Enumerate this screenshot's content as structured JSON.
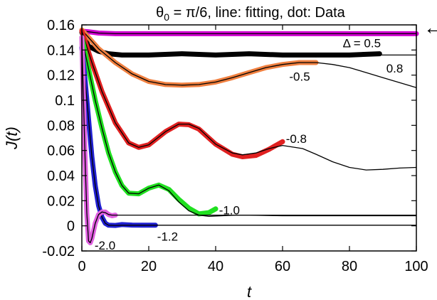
{
  "chart_data": {
    "type": "line",
    "title": {
      "base": "θ",
      "sub": "0",
      "rest": " = π/6, line: fitting, dot: Data"
    },
    "xlabel": "t",
    "ylabel": "J(t)",
    "xlim": [
      0,
      100
    ],
    "ylim": [
      -0.02,
      0.16
    ],
    "xticks": [
      0,
      20,
      40,
      60,
      80,
      100
    ],
    "yticks": [
      -0.02,
      0,
      0.02,
      0.04,
      0.06,
      0.08,
      0.1,
      0.12,
      0.14,
      0.16
    ],
    "ytick_labels": [
      "-0.02",
      "0",
      "0.02",
      "0.04",
      "0.06",
      "0.08",
      "0.1",
      "0.12",
      "0.14",
      "0.16"
    ],
    "grid": false,
    "legend": "none",
    "marker": {
      "y": 0.157,
      "symbol": "←",
      "position": "right edge"
    },
    "series": [
      {
        "label": "Δ = 0.5",
        "color": "#d000d0",
        "label_pos": [
          78,
          0.1455
        ],
        "fit": {
          "x": [
            0,
            2,
            5,
            10,
            20,
            40,
            60,
            80,
            100
          ],
          "y": [
            0.155,
            0.1545,
            0.1535,
            0.153,
            0.153,
            0.153,
            0.153,
            0.153,
            0.153
          ]
        },
        "data": {
          "x": [
            0,
            2,
            5,
            10,
            20,
            40,
            60,
            80,
            100
          ],
          "y": [
            0.155,
            0.1545,
            0.1535,
            0.153,
            0.153,
            0.153,
            0.153,
            0.153,
            0.153
          ]
        }
      },
      {
        "label": "0.8",
        "color": "#000000",
        "label_pos": [
          91,
          0.1255
        ],
        "fit": {
          "x": [
            0,
            2,
            5,
            8,
            12,
            20,
            30,
            40,
            50,
            60,
            70,
            80,
            90,
            100
          ],
          "y": [
            0.154,
            0.144,
            0.139,
            0.137,
            0.136,
            0.136,
            0.136,
            0.136,
            0.136,
            0.136,
            0.136,
            0.136,
            0.136,
            0.136
          ]
        },
        "data": {
          "x": [
            0,
            2,
            5,
            8,
            12,
            20,
            30,
            40,
            50,
            60,
            70,
            80,
            89
          ],
          "y": [
            0.154,
            0.143,
            0.139,
            0.137,
            0.136,
            0.136,
            0.137,
            0.136,
            0.137,
            0.136,
            0.136,
            0.136,
            0.137
          ]
        }
      },
      {
        "label": "-0.5",
        "color": "#f08040",
        "label_pos": [
          62,
          0.119
        ],
        "fit": {
          "x": [
            0,
            5,
            10,
            15,
            20,
            25,
            30,
            35,
            40,
            45,
            50,
            55,
            60,
            65,
            70,
            75,
            80,
            85,
            90,
            95,
            100
          ],
          "y": [
            0.156,
            0.141,
            0.13,
            0.121,
            0.115,
            0.1125,
            0.112,
            0.1125,
            0.1145,
            0.118,
            0.122,
            0.126,
            0.1285,
            0.13,
            0.13,
            0.1285,
            0.126,
            0.122,
            0.118,
            0.114,
            0.11
          ]
        },
        "data": {
          "x": [
            0,
            5,
            10,
            15,
            20,
            25,
            30,
            35,
            40,
            45,
            50,
            55,
            60,
            65,
            70
          ],
          "y": [
            0.156,
            0.141,
            0.13,
            0.121,
            0.115,
            0.1125,
            0.112,
            0.1125,
            0.1145,
            0.118,
            0.122,
            0.126,
            0.1285,
            0.13,
            0.13
          ]
        }
      },
      {
        "label": "-0.8",
        "color": "#e02020",
        "label_pos": [
          61,
          0.0695
        ],
        "fit": {
          "x": [
            0,
            3,
            6,
            10,
            14,
            17,
            20,
            25,
            29,
            32,
            35,
            40,
            45,
            48,
            52,
            56,
            60,
            66,
            70,
            75,
            80,
            85,
            90,
            95,
            100
          ],
          "y": [
            0.155,
            0.13,
            0.107,
            0.082,
            0.066,
            0.0625,
            0.0645,
            0.075,
            0.081,
            0.081,
            0.0775,
            0.065,
            0.058,
            0.0565,
            0.058,
            0.0615,
            0.064,
            0.0615,
            0.057,
            0.051,
            0.0465,
            0.0445,
            0.045,
            0.046,
            0.0465
          ]
        },
        "data": {
          "x": [
            0,
            3,
            6,
            10,
            14,
            17,
            20,
            25,
            29,
            32,
            35,
            40,
            45,
            48,
            52,
            56,
            60
          ],
          "y": [
            0.155,
            0.13,
            0.107,
            0.082,
            0.066,
            0.0625,
            0.0645,
            0.075,
            0.081,
            0.0805,
            0.077,
            0.065,
            0.057,
            0.055,
            0.056,
            0.061,
            0.067
          ]
        }
      },
      {
        "label": "-1.0",
        "color": "#20e020",
        "label_pos": [
          41,
          0.0125
        ],
        "fit": {
          "x": [
            0,
            2,
            4,
            6,
            8,
            10,
            12,
            14,
            17,
            20,
            23,
            26,
            29,
            32,
            35,
            38,
            42,
            46,
            50,
            60,
            70,
            80,
            90,
            100
          ],
          "y": [
            0.15,
            0.125,
            0.1,
            0.078,
            0.058,
            0.043,
            0.032,
            0.026,
            0.0255,
            0.03,
            0.0325,
            0.028,
            0.019,
            0.012,
            0.0085,
            0.0075,
            0.008,
            0.0085,
            0.0085,
            0.008,
            0.008,
            0.008,
            0.008,
            0.008
          ]
        },
        "data": {
          "x": [
            0,
            2,
            4,
            6,
            8,
            10,
            12,
            14,
            17,
            20,
            23,
            26,
            29,
            32,
            35,
            38,
            40
          ],
          "y": [
            0.15,
            0.125,
            0.1,
            0.078,
            0.058,
            0.043,
            0.032,
            0.026,
            0.0255,
            0.03,
            0.0325,
            0.029,
            0.021,
            0.014,
            0.0095,
            0.0105,
            0.0135
          ]
        }
      },
      {
        "label": "-1.2",
        "color": "#2020d0",
        "label_pos": [
          22.5,
          -0.0085
        ],
        "fit": {
          "x": [
            0,
            1,
            2,
            3,
            4,
            5,
            6,
            7,
            8,
            10,
            12,
            15,
            18,
            22,
            30,
            40,
            60,
            80,
            100
          ],
          "y": [
            0.142,
            0.115,
            0.085,
            0.055,
            0.032,
            0.016,
            0.007,
            0.002,
            0.0005,
            0.0003,
            0.0005,
            0.0005,
            0.0005,
            0.0005,
            0.0005,
            0.0005,
            0.0005,
            0.0005,
            0.0005
          ]
        },
        "data": {
          "x": [
            0,
            1,
            2,
            3,
            4,
            5,
            6,
            7,
            8,
            10,
            12,
            15,
            18,
            22
          ],
          "y": [
            0.142,
            0.115,
            0.085,
            0.055,
            0.032,
            0.016,
            0.007,
            0.002,
            0.0005,
            0.0003,
            0.001,
            0.0006,
            0.0005,
            0.0005
          ]
        }
      },
      {
        "label": "-2.0",
        "color": "#e060e0",
        "label_pos": [
          3.8,
          -0.0155
        ],
        "fit": {
          "x": [
            0,
            0.5,
            1,
            1.5,
            2,
            2.5,
            3,
            4,
            5,
            6,
            7,
            8,
            9,
            10,
            15,
            20,
            40,
            60,
            80,
            100
          ],
          "y": [
            0.15,
            0.1,
            0.05,
            0.01,
            -0.012,
            -0.0135,
            -0.01,
            0.002,
            0.009,
            0.011,
            0.0105,
            0.009,
            0.0085,
            0.0085,
            0.0085,
            0.0085,
            0.0085,
            0.0085,
            0.0085,
            0.0085
          ]
        },
        "data": {
          "x": [
            0,
            0.5,
            1,
            1.5,
            2,
            2.5,
            3,
            4,
            5,
            6,
            7,
            8,
            9,
            10
          ],
          "y": [
            0.15,
            0.1,
            0.05,
            0.01,
            -0.012,
            -0.0135,
            -0.01,
            0.002,
            0.009,
            0.011,
            0.011,
            0.009,
            0.008,
            0.0085
          ]
        }
      }
    ]
  }
}
